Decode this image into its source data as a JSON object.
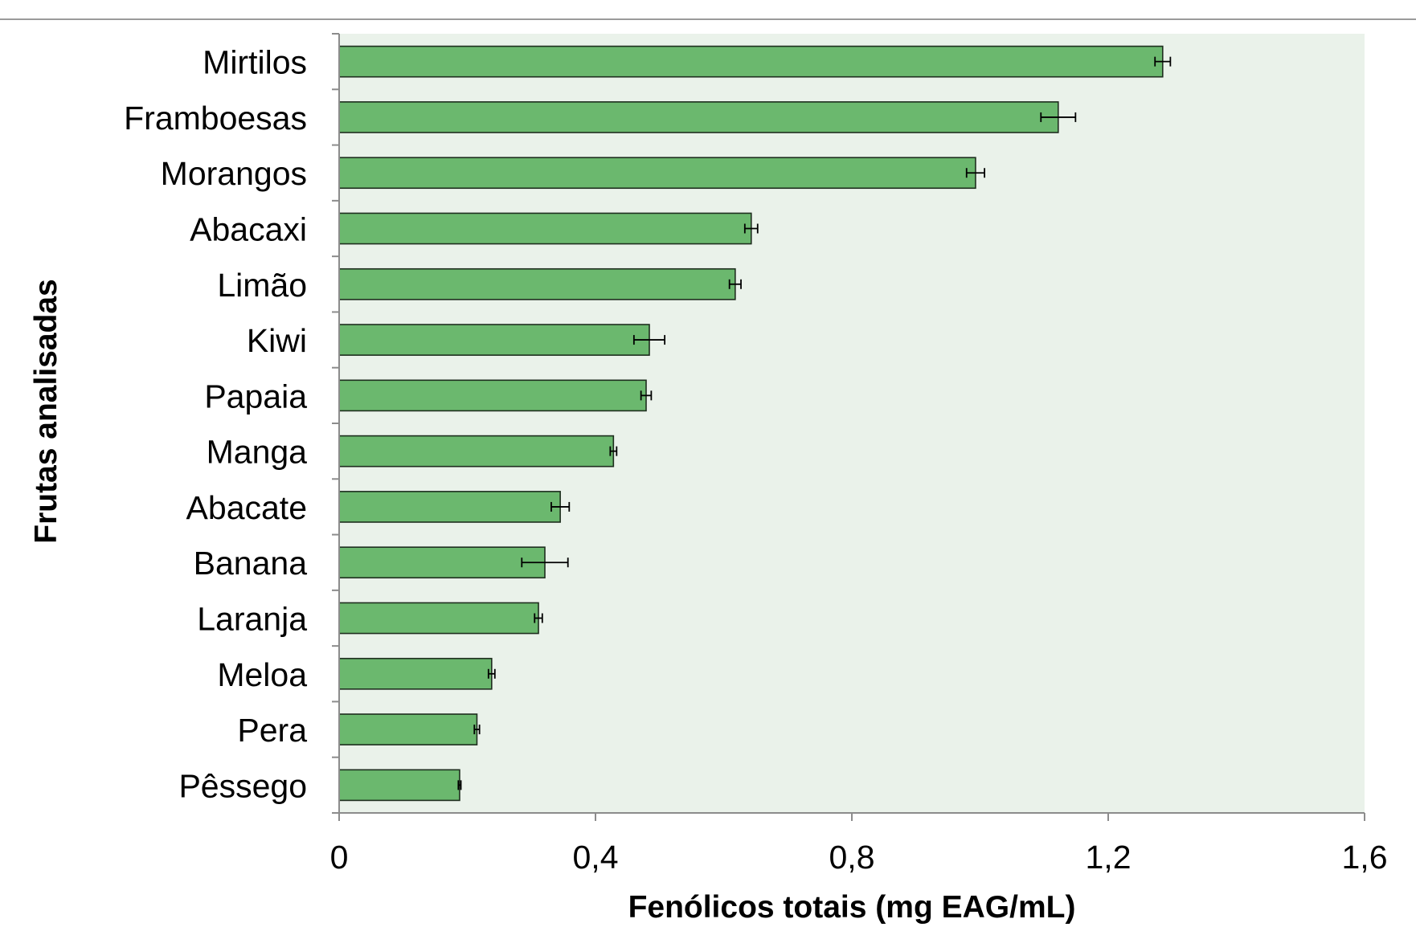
{
  "chart_data": {
    "type": "bar",
    "orientation": "horizontal",
    "xlabel": "Fenólicos totais (mg EAG/mL)",
    "ylabel": "Frutas analisadas",
    "xlim": [
      0,
      1.6
    ],
    "x_ticks": [
      "0",
      "0,4",
      "0,8",
      "1,2",
      "1,6"
    ],
    "x_tick_values": [
      0,
      0.4,
      0.8,
      1.2,
      1.6
    ],
    "grid": false,
    "categories": [
      "Mirtilos",
      "Framboesas",
      "Morangos",
      "Abacaxi",
      "Limão",
      "Kiwi",
      "Papaia",
      "Manga",
      "Abacate",
      "Banana",
      "Laranja",
      "Meloa",
      "Pera",
      "Pêssego"
    ],
    "series": [
      {
        "values": [
          1.285,
          1.122,
          0.993,
          0.643,
          0.618,
          0.484,
          0.479,
          0.428,
          0.345,
          0.321,
          0.311,
          0.238,
          0.215,
          0.188
        ],
        "error": [
          0.012,
          0.027,
          0.014,
          0.01,
          0.009,
          0.024,
          0.008,
          0.005,
          0.014,
          0.036,
          0.006,
          0.005,
          0.004,
          0.002
        ],
        "color": "#6bb86e"
      }
    ],
    "colors": {
      "bar_fill": "#6bb86e",
      "bar_stroke": "#1e2e1e",
      "plot_background": "#eaf2ea",
      "axis_line": "#8c8c8c",
      "frame_line": "#9a9a9a"
    }
  }
}
